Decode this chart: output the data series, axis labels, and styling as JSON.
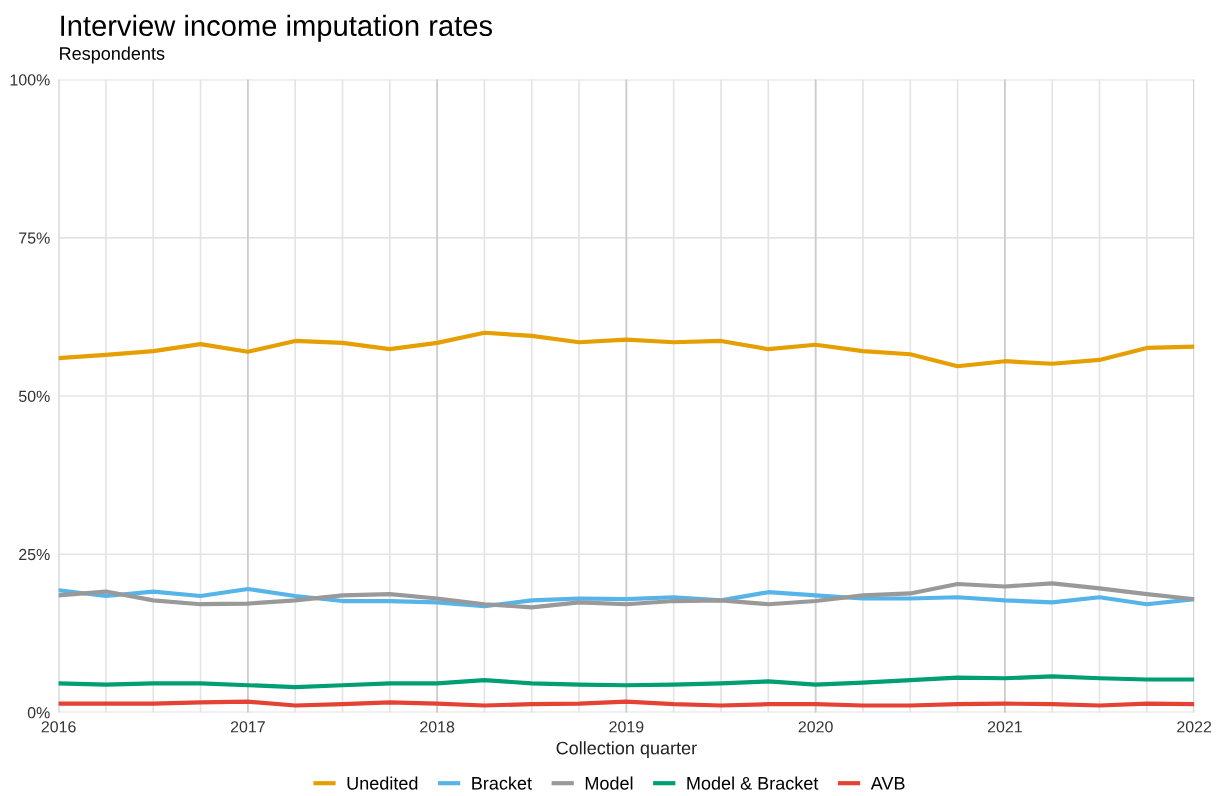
{
  "chart_data": {
    "type": "line",
    "title": "Interview income imputation rates",
    "subtitle": "Respondents",
    "xlabel": "Collection quarter",
    "x": [
      2016,
      2016.25,
      2016.5,
      2016.75,
      2017,
      2017.25,
      2017.5,
      2017.75,
      2018,
      2018.25,
      2018.5,
      2018.75,
      2019,
      2019.25,
      2019.5,
      2019.75,
      2020,
      2020.25,
      2020.5,
      2020.75,
      2021,
      2021.25,
      2021.5,
      2021.75,
      2022
    ],
    "series": [
      {
        "name": "Unedited",
        "color": "#e69f00",
        "values": [
          56.0,
          56.5,
          57.1,
          58.2,
          57.0,
          58.7,
          58.4,
          57.4,
          58.4,
          60.0,
          59.5,
          58.5,
          58.9,
          58.5,
          58.7,
          57.4,
          58.1,
          57.1,
          56.6,
          54.7,
          55.5,
          55.1,
          55.7,
          57.6,
          57.8
        ]
      },
      {
        "name": "Bracket",
        "color": "#56b4e9",
        "values": [
          19.3,
          18.4,
          19.1,
          18.4,
          19.5,
          18.4,
          17.6,
          17.6,
          17.4,
          16.8,
          17.7,
          18.0,
          17.9,
          18.2,
          17.7,
          19.0,
          18.5,
          18.0,
          18.0,
          18.2,
          17.7,
          17.4,
          18.2,
          17.1,
          17.9
        ]
      },
      {
        "name": "Model",
        "color": "#999999",
        "values": [
          18.5,
          19.1,
          17.7,
          17.1,
          17.2,
          17.7,
          18.5,
          18.7,
          18.0,
          17.1,
          16.6,
          17.4,
          17.1,
          17.6,
          17.7,
          17.1,
          17.6,
          18.5,
          18.8,
          20.3,
          19.9,
          20.4,
          19.6,
          18.7,
          17.9
        ]
      },
      {
        "name": "Model & Bracket",
        "color": "#009e73",
        "values": [
          4.6,
          4.4,
          4.6,
          4.6,
          4.3,
          4.0,
          4.3,
          4.6,
          4.6,
          5.1,
          4.6,
          4.4,
          4.3,
          4.4,
          4.6,
          4.9,
          4.4,
          4.7,
          5.1,
          5.5,
          5.4,
          5.7,
          5.4,
          5.2,
          5.2
        ]
      },
      {
        "name": "AVB",
        "color": "#e34234",
        "values": [
          1.4,
          1.4,
          1.4,
          1.6,
          1.7,
          1.1,
          1.3,
          1.6,
          1.4,
          1.1,
          1.3,
          1.4,
          1.7,
          1.3,
          1.1,
          1.3,
          1.3,
          1.1,
          1.1,
          1.3,
          1.4,
          1.3,
          1.1,
          1.4,
          1.3
        ]
      }
    ],
    "xlim": [
      2016,
      2022
    ],
    "xticks": [
      2016,
      2017,
      2018,
      2019,
      2020,
      2021,
      2022
    ],
    "ylim": [
      0,
      100
    ],
    "yticks": [
      {
        "value": 0,
        "label": "0%"
      },
      {
        "value": 25,
        "label": "25%"
      },
      {
        "value": 50,
        "label": "50%"
      },
      {
        "value": 75,
        "label": "75%"
      },
      {
        "value": 100,
        "label": "100%"
      }
    ],
    "grid": true,
    "legend": "bottom",
    "marker": "none",
    "line_style": "solid"
  }
}
